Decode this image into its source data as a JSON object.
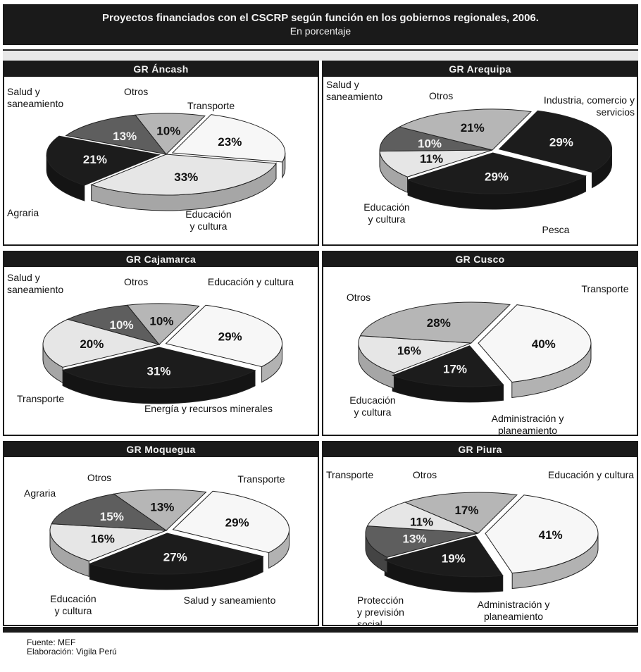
{
  "title": "Proyectos financiados con el CSCRP según función en los gobiernos regionales, 2006.",
  "subtitle": "En porcentaje",
  "footer": {
    "source": "Fuente: MEF",
    "credit": "Elaboración: Vigila Perú"
  },
  "colors": {
    "dark": "#1c1c1c",
    "medium": "#5e5e5e",
    "light": "#b6b6b6",
    "pale": "#e6e6e6",
    "white": "#f7f7f7"
  },
  "chart_data": [
    {
      "type": "pie",
      "title": "GR Áncash",
      "slices": [
        {
          "label": "Transporte",
          "value": 23,
          "display": "23%",
          "shade": "white"
        },
        {
          "label": "Educación y cultura",
          "value": 33,
          "display": "33%",
          "shade": "pale"
        },
        {
          "label": "Agraria",
          "value": 21,
          "display": "21%",
          "shade": "dark"
        },
        {
          "label": "Salud y saneamiento",
          "value": 13,
          "display": "13%",
          "shade": "medium"
        },
        {
          "label": "Otros",
          "value": 10,
          "display": "10%",
          "shade": "light"
        }
      ]
    },
    {
      "type": "pie",
      "title": "GR Arequipa",
      "slices": [
        {
          "label": "Industria, comercio y servicios",
          "value": 29,
          "display": "29%",
          "shade": "dark"
        },
        {
          "label": "Pesca",
          "value": 29,
          "display": "29%",
          "shade": "dark"
        },
        {
          "label": "Educación y cultura",
          "value": 11,
          "display": "11%",
          "shade": "pale"
        },
        {
          "label": "Salud y saneamiento",
          "value": 10,
          "display": "10%",
          "shade": "medium"
        },
        {
          "label": "Otros",
          "value": 21,
          "display": "21%",
          "shade": "light"
        }
      ]
    },
    {
      "type": "pie",
      "title": "GR Cajamarca",
      "slices": [
        {
          "label": "Educación y cultura",
          "value": 29,
          "display": "29%",
          "shade": "white"
        },
        {
          "label": "Energía y recursos minerales",
          "value": 31,
          "display": "31%",
          "shade": "dark"
        },
        {
          "label": "Transporte",
          "value": 20,
          "display": "20%",
          "shade": "pale"
        },
        {
          "label": "Salud y saneamiento",
          "value": 10,
          "display": "10%",
          "shade": "medium"
        },
        {
          "label": "Otros",
          "value": 10,
          "display": "10%",
          "shade": "light"
        }
      ]
    },
    {
      "type": "pie",
      "title": "GR Cusco",
      "slices": [
        {
          "label": "Transporte",
          "value": 40,
          "display": "40%",
          "shade": "white"
        },
        {
          "label": "Administración y planeamiento",
          "value": 17,
          "display": "17%",
          "shade": "dark"
        },
        {
          "label": "Educación y cultura",
          "value": 16,
          "display": "16%",
          "shade": "pale"
        },
        {
          "label": "Otros",
          "value": 28,
          "display": "28%",
          "shade": "light"
        }
      ]
    },
    {
      "type": "pie",
      "title": "GR Moquegua",
      "slices": [
        {
          "label": "Transporte",
          "value": 29,
          "display": "29%",
          "shade": "white"
        },
        {
          "label": "Salud y saneamiento",
          "value": 27,
          "display": "27%",
          "shade": "dark"
        },
        {
          "label": "Educación y cultura",
          "value": 16,
          "display": "16%",
          "shade": "pale"
        },
        {
          "label": "Agraria",
          "value": 15,
          "display": "15%",
          "shade": "medium"
        },
        {
          "label": "Otros",
          "value": 13,
          "display": "13%",
          "shade": "light"
        }
      ]
    },
    {
      "type": "pie",
      "title": "GR Piura",
      "slices": [
        {
          "label": "Educación y cultura",
          "value": 41,
          "display": "41%",
          "shade": "white"
        },
        {
          "label": "Administración y planeamiento",
          "value": 19,
          "display": "19%",
          "shade": "dark"
        },
        {
          "label": "Protección y previsión social",
          "value": 13,
          "display": "13%",
          "shade": "medium"
        },
        {
          "label": "Transporte",
          "value": 11,
          "display": "11%",
          "shade": "pale"
        },
        {
          "label": "Otros",
          "value": 17,
          "display": "17%",
          "shade": "light"
        }
      ]
    }
  ]
}
